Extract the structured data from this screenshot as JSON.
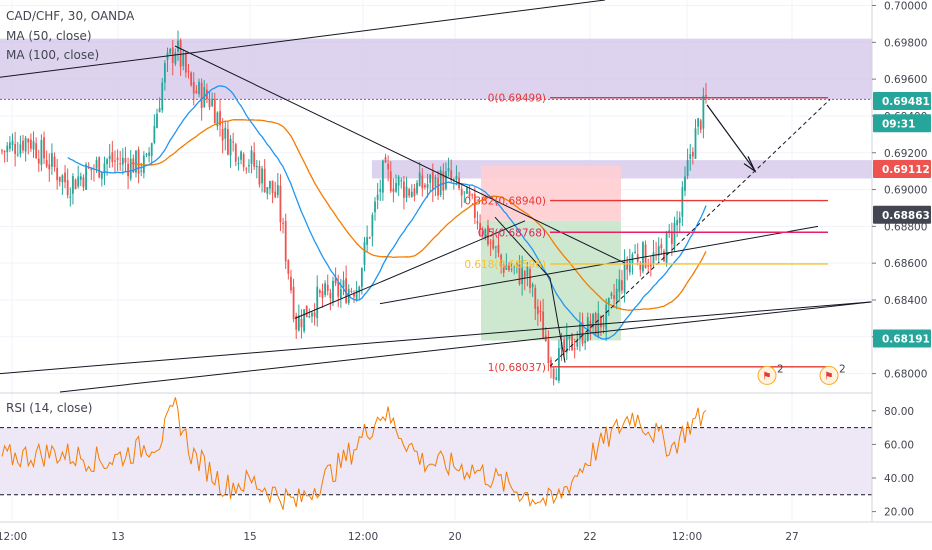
{
  "legend": {
    "symbol": "CAD/CHF, 30, OANDA",
    "ma50": "MA (50, close)",
    "ma100": "MA (100, close)",
    "rsi": "RSI (14, close)"
  },
  "colors": {
    "up": "#26a69a",
    "down": "#ef5350",
    "ma50": "#2196f3",
    "ma100": "#f57c00",
    "zone": "#d1c4e9",
    "rsi": "#f57c00",
    "rsi_band": "#ede7f6",
    "profit": "#c8e6c9",
    "loss": "#ffcdd2",
    "fib_red": "#e53935",
    "fib_pink": "#e91e63",
    "fib_orange": "#fbc02d"
  },
  "chart_data": [
    {
      "type": "candlestick",
      "title": "CAD/CHF, 30, OANDA",
      "ylim": [
        0.679,
        0.7003
      ],
      "y_ticks": [
        "0.70000",
        "0.69800",
        "0.69600",
        "0.69400",
        "0.69200",
        "0.69000",
        "0.68800",
        "0.68600",
        "0.68400",
        "0.68200",
        "0.68000"
      ],
      "y_tick_values": [
        0.7,
        0.698,
        0.696,
        0.694,
        0.692,
        0.69,
        0.688,
        0.686,
        0.684,
        0.682,
        0.68
      ],
      "x_ticks": [
        "12:00",
        "13",
        "15",
        "12:00",
        "20",
        "22",
        "12:00",
        "27"
      ],
      "price_path": [
        {
          "bar": 0,
          "price": 0.6921
        },
        {
          "bar": 10,
          "price": 0.6928
        },
        {
          "bar": 25,
          "price": 0.6903
        },
        {
          "bar": 40,
          "price": 0.6916
        },
        {
          "bar": 55,
          "price": 0.6913
        },
        {
          "bar": 62,
          "price": 0.6965
        },
        {
          "bar": 66,
          "price": 0.6978
        },
        {
          "bar": 72,
          "price": 0.6955
        },
        {
          "bar": 80,
          "price": 0.6948
        },
        {
          "bar": 85,
          "price": 0.6928
        },
        {
          "bar": 95,
          "price": 0.6915
        },
        {
          "bar": 105,
          "price": 0.6895
        },
        {
          "bar": 112,
          "price": 0.6828
        },
        {
          "bar": 120,
          "price": 0.684
        },
        {
          "bar": 135,
          "price": 0.6848
        },
        {
          "bar": 145,
          "price": 0.6908
        },
        {
          "bar": 155,
          "price": 0.69
        },
        {
          "bar": 170,
          "price": 0.6906
        },
        {
          "bar": 180,
          "price": 0.6888
        },
        {
          "bar": 190,
          "price": 0.686
        },
        {
          "bar": 200,
          "price": 0.6852
        },
        {
          "bar": 210,
          "price": 0.6804
        },
        {
          "bar": 220,
          "price": 0.6822
        },
        {
          "bar": 230,
          "price": 0.683
        },
        {
          "bar": 240,
          "price": 0.6865
        },
        {
          "bar": 250,
          "price": 0.6862
        },
        {
          "bar": 258,
          "price": 0.6885
        },
        {
          "bar": 262,
          "price": 0.692
        },
        {
          "bar": 268,
          "price": 0.6948
        }
      ],
      "bar_count": 269,
      "series": [
        {
          "name": "MA (50, close)",
          "color": "#2196f3"
        },
        {
          "name": "MA (100, close)",
          "color": "#f57c00"
        }
      ],
      "fib_levels": [
        {
          "label": "0(0.69499)",
          "value": 0.69499
        },
        {
          "label": "0.382(0.68940)",
          "value": 0.6894
        },
        {
          "label": "0.5(0.68768)",
          "value": 0.68768
        },
        {
          "label": "0.618(0.68596)",
          "value": 0.68596
        },
        {
          "label": "1(0.68037)",
          "value": 0.68037
        }
      ],
      "price_tags": [
        {
          "text": "0.69481",
          "value": 0.69481,
          "color": "#26a69a"
        },
        {
          "text": "09:31",
          "value": 0.6936,
          "color": "#26a69a"
        },
        {
          "text": "0.69112",
          "value": 0.69112,
          "color": "#ef5350"
        },
        {
          "text": "0.68863",
          "value": 0.68863,
          "color": "#434651"
        },
        {
          "text": "0.68191",
          "value": 0.68191,
          "color": "#26a69a"
        }
      ],
      "zones": [
        {
          "from": 0.6949,
          "to": 0.6982
        },
        {
          "from": 0.6906,
          "to": 0.6916
        }
      ],
      "event_badge": "2"
    },
    {
      "type": "line",
      "title": "RSI (14, close)",
      "ylim": [
        15,
        90
      ],
      "y_ticks": [
        "80.00",
        "60.00",
        "40.00",
        "20.00"
      ],
      "y_tick_values": [
        80,
        60,
        40,
        20
      ],
      "band": [
        30,
        70
      ],
      "path": [
        {
          "bar": 0,
          "value": 52
        },
        {
          "bar": 20,
          "value": 55
        },
        {
          "bar": 40,
          "value": 50
        },
        {
          "bar": 60,
          "value": 62
        },
        {
          "bar": 66,
          "value": 82
        },
        {
          "bar": 72,
          "value": 55
        },
        {
          "bar": 85,
          "value": 35
        },
        {
          "bar": 95,
          "value": 38
        },
        {
          "bar": 112,
          "value": 25
        },
        {
          "bar": 130,
          "value": 50
        },
        {
          "bar": 145,
          "value": 80
        },
        {
          "bar": 160,
          "value": 50
        },
        {
          "bar": 180,
          "value": 45
        },
        {
          "bar": 200,
          "value": 30
        },
        {
          "bar": 210,
          "value": 25
        },
        {
          "bar": 225,
          "value": 55
        },
        {
          "bar": 240,
          "value": 78
        },
        {
          "bar": 255,
          "value": 58
        },
        {
          "bar": 262,
          "value": 72
        },
        {
          "bar": 268,
          "value": 78
        }
      ]
    }
  ]
}
